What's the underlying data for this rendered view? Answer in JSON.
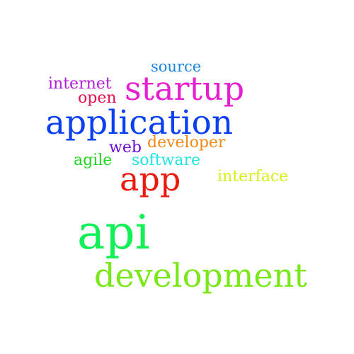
{
  "wordcloud": {
    "words": [
      {
        "text": "source",
        "color": "#1b84de"
      },
      {
        "text": "startup",
        "color": "#e61fd0"
      },
      {
        "text": "internet",
        "color": "#b21bd6"
      },
      {
        "text": "open",
        "color": "#e3114f"
      },
      {
        "text": "application",
        "color": "#0b3ff2"
      },
      {
        "text": "developer",
        "color": "#f08a16"
      },
      {
        "text": "web",
        "color": "#6b0bd6"
      },
      {
        "text": "agile",
        "color": "#20d81b"
      },
      {
        "text": "software",
        "color": "#1ee6e1"
      },
      {
        "text": "app",
        "color": "#ea1a0c"
      },
      {
        "text": "interface",
        "color": "#d6ee18"
      },
      {
        "text": "api",
        "color": "#12f057"
      },
      {
        "text": "development",
        "color": "#7ae818"
      }
    ]
  }
}
